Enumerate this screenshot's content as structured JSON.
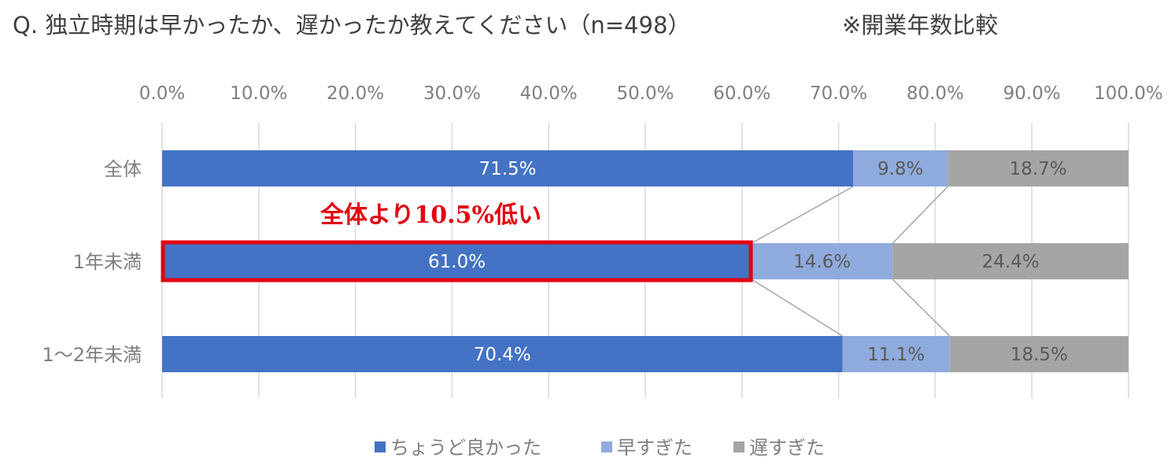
{
  "chart_data": {
    "type": "bar",
    "orientation": "horizontal",
    "stacked": true,
    "title": "Q.  独立時期は早かったか、遅かったか教えてください（n=498）",
    "subtitle": "※開業年数比較",
    "categories": [
      "全体",
      "1年未満",
      "1～2年未満"
    ],
    "series": [
      {
        "name": "ちょうど良かった",
        "values": [
          71.5,
          61.0,
          70.4
        ],
        "labels": [
          "71.5%",
          "61.0%",
          "70.4%"
        ],
        "color": "#4472c4",
        "label_color": "#ffffff"
      },
      {
        "name": "早すぎた",
        "values": [
          9.8,
          14.6,
          11.1
        ],
        "labels": [
          "9.8%",
          "14.6%",
          "11.1%"
        ],
        "color": "#8faadc",
        "label_color": "#595959"
      },
      {
        "name": "遅すぎた",
        "values": [
          18.7,
          24.4,
          18.5
        ],
        "labels": [
          "18.7%",
          "24.4%",
          "18.5%"
        ],
        "color": "#a5a5a5",
        "label_color": "#595959"
      }
    ],
    "xlim": [
      0,
      100
    ],
    "x_ticks": [
      "0.0%",
      "10.0%",
      "20.0%",
      "30.0%",
      "40.0%",
      "50.0%",
      "60.0%",
      "70.0%",
      "80.0%",
      "90.0%",
      "100.0%"
    ],
    "grid": true,
    "legend_position": "bottom",
    "annotation": {
      "text": "全体より10.5%低い",
      "color": "#e3000f",
      "highlight": "1年未満 ちょうど良かった"
    }
  }
}
